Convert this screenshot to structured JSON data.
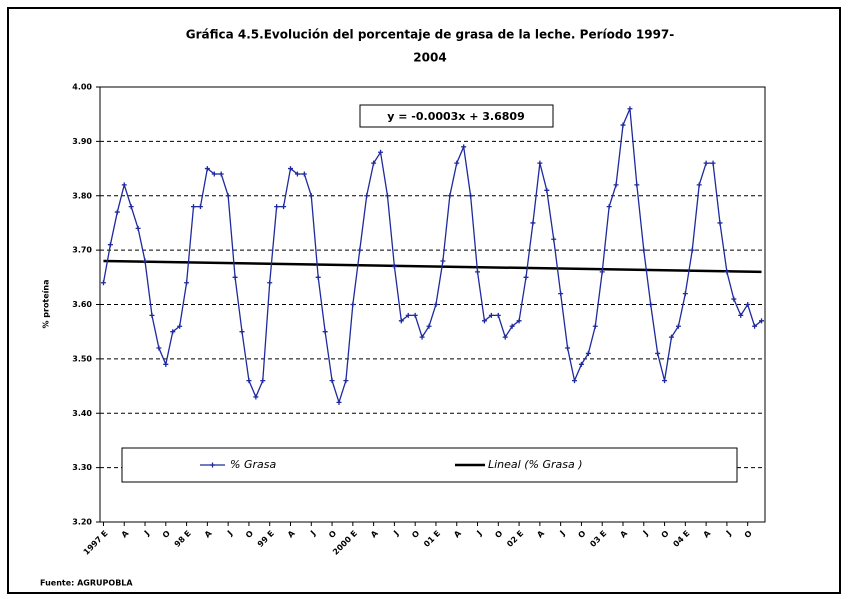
{
  "chart_data": {
    "type": "line",
    "title": "Gráfica 4.5.Evolución del porcentaje de grasa  de la leche. Período 1997-2004",
    "y_label": "% proteína",
    "equation": "y = -0.0003x + 3.6809",
    "source": "Fuente: AGRUPOBLA",
    "legend_position": "bottom",
    "grid": true,
    "categories": [
      "1997 E",
      null,
      null,
      "A",
      null,
      null,
      "J",
      null,
      null,
      "O",
      null,
      null,
      "98 E",
      null,
      null,
      "A",
      null,
      null,
      "J",
      null,
      null,
      "O",
      null,
      null,
      "99 E",
      null,
      null,
      "A",
      null,
      null,
      "J",
      null,
      null,
      "O",
      null,
      null,
      "2000 E",
      null,
      null,
      "A",
      null,
      null,
      "J",
      null,
      null,
      "O",
      null,
      null,
      "01 E",
      null,
      null,
      "A",
      null,
      null,
      "J",
      null,
      null,
      "O",
      null,
      null,
      "02 E",
      null,
      null,
      "A",
      null,
      null,
      "J",
      null,
      null,
      "O",
      null,
      null,
      "03 E",
      null,
      null,
      "A",
      null,
      null,
      "J",
      null,
      null,
      "O",
      null,
      null,
      "04 E",
      null,
      null,
      "A",
      null,
      null,
      "J",
      null,
      null,
      "O",
      null,
      null
    ],
    "series": [
      {
        "name": "% Grasa",
        "color": "#1f2a9e",
        "values": [
          3.64,
          3.71,
          3.77,
          3.82,
          3.78,
          3.74,
          3.68,
          3.58,
          3.52,
          3.49,
          3.55,
          3.56,
          3.64,
          3.78,
          3.78,
          3.85,
          3.84,
          3.84,
          3.8,
          3.65,
          3.55,
          3.46,
          3.43,
          3.46,
          3.64,
          3.78,
          3.78,
          3.85,
          3.84,
          3.84,
          3.8,
          3.65,
          3.55,
          3.46,
          3.42,
          3.46,
          3.6,
          3.7,
          3.8,
          3.86,
          3.88,
          3.8,
          3.67,
          3.57,
          3.58,
          3.58,
          3.54,
          3.56,
          3.6,
          3.68,
          3.8,
          3.86,
          3.89,
          3.8,
          3.66,
          3.57,
          3.58,
          3.58,
          3.54,
          3.56,
          3.57,
          3.65,
          3.75,
          3.86,
          3.81,
          3.72,
          3.62,
          3.52,
          3.46,
          3.49,
          3.51,
          3.56,
          3.66,
          3.78,
          3.82,
          3.93,
          3.96,
          3.82,
          3.7,
          3.6,
          3.51,
          3.46,
          3.54,
          3.56,
          3.62,
          3.7,
          3.82,
          3.86,
          3.86,
          3.75,
          3.66,
          3.61,
          3.58,
          3.6,
          3.56,
          3.57
        ]
      }
    ],
    "trendline": {
      "name": "Lineal (% Grasa )",
      "color": "#000000",
      "values": [
        3.68,
        3.66
      ]
    },
    "ylim": [
      3.2,
      4.0
    ],
    "yticks": [
      {
        "value": 3.2,
        "label": "3.20"
      },
      {
        "value": 3.3,
        "label": "3.30"
      },
      {
        "value": 3.4,
        "label": "3.40"
      },
      {
        "value": 3.5,
        "label": "3.50"
      },
      {
        "value": 3.6,
        "label": "3.60"
      },
      {
        "value": 3.7,
        "label": "3.70"
      },
      {
        "value": 3.8,
        "label": "3.80"
      },
      {
        "value": 3.9,
        "label": "3.90"
      },
      {
        "value": 4.0,
        "label": "4.00"
      }
    ]
  }
}
